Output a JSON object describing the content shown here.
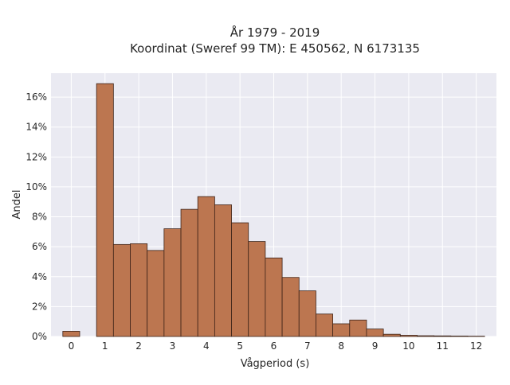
{
  "chart_data": {
    "type": "bar",
    "title_lines": [
      "År 1979 - 2019",
      "Koordinat (Sweref 99 TM): E 450562, N 6173135"
    ],
    "xlabel": "Vågperiod (s)",
    "ylabel": "Andel",
    "xlim": [
      -0.6,
      12.6
    ],
    "ylim": [
      0,
      17.6
    ],
    "x_ticks": [
      0,
      1,
      2,
      3,
      4,
      5,
      6,
      7,
      8,
      9,
      10,
      11,
      12
    ],
    "x_tick_labels": [
      "0",
      "1",
      "2",
      "3",
      "4",
      "5",
      "6",
      "7",
      "8",
      "9",
      "10",
      "11",
      "12"
    ],
    "y_ticks": [
      0,
      2,
      4,
      6,
      8,
      10,
      12,
      14,
      16
    ],
    "y_tick_labels": [
      "0%",
      "2%",
      "4%",
      "6%",
      "8%",
      "10%",
      "12%",
      "14%",
      "16%"
    ],
    "bar_width": 0.5,
    "bins_start": [
      -0.25,
      0.75,
      1.25,
      1.75,
      2.25,
      2.75,
      3.25,
      3.75,
      4.25,
      4.75,
      5.25,
      5.75,
      6.25,
      6.75,
      7.25,
      7.75,
      8.25,
      8.75,
      9.25,
      9.75,
      10.25,
      10.75,
      11.25,
      11.75
    ],
    "values": [
      0.35,
      16.9,
      6.15,
      6.2,
      5.75,
      7.2,
      8.5,
      9.35,
      8.8,
      7.6,
      6.35,
      5.25,
      3.95,
      3.05,
      1.5,
      0.85,
      1.1,
      0.5,
      0.15,
      0.08,
      0.05,
      0.04,
      0.03,
      0.02
    ],
    "grid": true,
    "colors": {
      "bar_fill": "#bc7650",
      "bar_edge": "#3d2318",
      "plot_background": "#eaeaf2",
      "grid": "#ffffff"
    }
  }
}
